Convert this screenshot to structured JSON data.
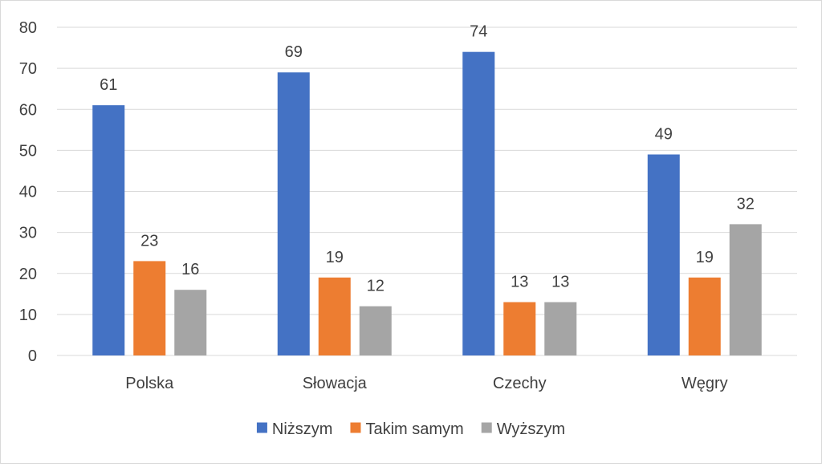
{
  "chart_data": {
    "type": "bar",
    "categories": [
      "Polska",
      "Słowacja",
      "Czechy",
      "Węgry"
    ],
    "series": [
      {
        "name": "Niższym",
        "color": "#4472c4",
        "values": [
          61,
          69,
          74,
          49
        ]
      },
      {
        "name": "Takim samym",
        "color": "#ed7d31",
        "values": [
          23,
          19,
          13,
          19
        ]
      },
      {
        "name": "Wyższym",
        "color": "#a5a5a5",
        "values": [
          16,
          12,
          13,
          32
        ]
      }
    ],
    "ylim": [
      0,
      80
    ],
    "yticks": [
      0,
      10,
      20,
      30,
      40,
      50,
      60,
      70,
      80
    ],
    "grid": true,
    "legend": "bottom",
    "title": "",
    "xlabel": "",
    "ylabel": ""
  }
}
